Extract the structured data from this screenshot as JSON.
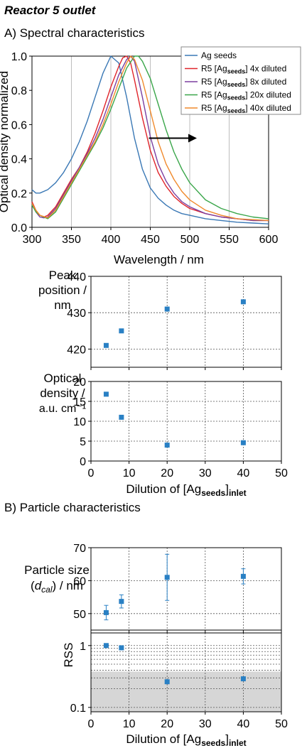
{
  "figure": {
    "title": "Reactor 5 outlet",
    "section_a": "A) Spectral characteristics",
    "section_b": "B) Particle characteristics"
  },
  "chart_data": [
    {
      "id": "spectra",
      "type": "line",
      "xlabel": "Wavelength / nm",
      "ylabel": "Optical density normalized",
      "xlim": [
        300,
        600
      ],
      "ylim": [
        0,
        1.0
      ],
      "xticks": [
        300,
        350,
        400,
        450,
        500,
        550,
        600
      ],
      "yticks": [
        0.0,
        0.2,
        0.4,
        0.6,
        0.8,
        1.0
      ],
      "xtick_labels": [
        "300",
        "350",
        "400",
        "450",
        "500",
        "550",
        "600"
      ],
      "ytick_labels": [
        "0.0",
        "0.2",
        "0.4",
        "0.6",
        "0.8",
        "1.0"
      ],
      "grid": "vertical",
      "legend_position": "top-right",
      "annotation": "arrow pointing right, from 450 nm to 500 nm at 0.50",
      "series": [
        {
          "name": "Ag seeds",
          "name_main": "Ag seeds",
          "name_sub": "",
          "name_suffix": "",
          "color": "#3a78b5",
          "x": [
            300,
            305,
            310,
            320,
            330,
            340,
            350,
            360,
            370,
            380,
            390,
            400,
            410,
            420,
            430,
            440,
            450,
            460,
            470,
            480,
            490,
            500,
            520,
            540,
            560,
            580,
            600
          ],
          "y": [
            0.22,
            0.2,
            0.2,
            0.22,
            0.26,
            0.32,
            0.4,
            0.5,
            0.62,
            0.76,
            0.9,
            1.0,
            0.96,
            0.76,
            0.52,
            0.34,
            0.23,
            0.17,
            0.13,
            0.1,
            0.08,
            0.07,
            0.05,
            0.04,
            0.03,
            0.025,
            0.02
          ]
        },
        {
          "name": "R5 [Agseeds] 4x diluted",
          "name_main": "R5 [Ag",
          "name_sub": "seeds",
          "name_suffix": "] 4x diluted",
          "color": "#e0252b",
          "x": [
            300,
            305,
            310,
            315,
            320,
            330,
            340,
            350,
            360,
            370,
            380,
            390,
            400,
            410,
            415,
            420,
            425,
            430,
            440,
            450,
            460,
            470,
            480,
            490,
            500,
            520,
            540,
            560,
            580,
            600
          ],
          "y": [
            0.15,
            0.1,
            0.07,
            0.06,
            0.07,
            0.12,
            0.2,
            0.28,
            0.35,
            0.44,
            0.55,
            0.68,
            0.82,
            0.94,
            0.99,
            1.0,
            0.96,
            0.86,
            0.64,
            0.45,
            0.32,
            0.24,
            0.18,
            0.14,
            0.11,
            0.08,
            0.06,
            0.05,
            0.04,
            0.04
          ]
        },
        {
          "name": "R5 [Agseeds] 8x diluted",
          "name_main": "R5 [Ag",
          "name_sub": "seeds",
          "name_suffix": "] 8x diluted",
          "color": "#7b3fa0",
          "x": [
            300,
            305,
            310,
            315,
            320,
            330,
            340,
            350,
            360,
            370,
            380,
            390,
            400,
            410,
            420,
            425,
            430,
            440,
            450,
            460,
            470,
            480,
            490,
            500,
            520,
            540,
            560,
            580,
            600
          ],
          "y": [
            0.14,
            0.09,
            0.06,
            0.055,
            0.06,
            0.11,
            0.19,
            0.27,
            0.35,
            0.43,
            0.52,
            0.63,
            0.76,
            0.89,
            0.98,
            1.0,
            0.97,
            0.76,
            0.53,
            0.37,
            0.27,
            0.2,
            0.15,
            0.12,
            0.08,
            0.06,
            0.05,
            0.04,
            0.04
          ]
        },
        {
          "name": "R5 [Agseeds] 20x diluted",
          "name_main": "R5 [Ag",
          "name_sub": "seeds",
          "name_suffix": "] 20x diluted",
          "color": "#3aa64a",
          "x": [
            300,
            305,
            310,
            320,
            330,
            340,
            350,
            360,
            370,
            380,
            390,
            400,
            410,
            420,
            430,
            435,
            440,
            450,
            460,
            470,
            480,
            490,
            500,
            520,
            540,
            560,
            580,
            600
          ],
          "y": [
            0.13,
            0.09,
            0.07,
            0.05,
            0.09,
            0.17,
            0.25,
            0.33,
            0.41,
            0.49,
            0.58,
            0.69,
            0.81,
            0.93,
            1.0,
            1.0,
            0.97,
            0.87,
            0.72,
            0.57,
            0.44,
            0.34,
            0.26,
            0.16,
            0.11,
            0.08,
            0.06,
            0.05
          ]
        },
        {
          "name": "R5 [Agseeds] 40x diluted",
          "name_main": "R5 [Ag",
          "name_sub": "seeds",
          "name_suffix": "] 40x diluted",
          "color": "#f08a2c",
          "x": [
            300,
            305,
            310,
            320,
            330,
            340,
            350,
            360,
            370,
            380,
            390,
            400,
            410,
            420,
            425,
            430,
            440,
            450,
            460,
            470,
            480,
            490,
            500,
            520,
            540,
            560,
            580,
            600
          ],
          "y": [
            0.14,
            0.1,
            0.07,
            0.055,
            0.1,
            0.18,
            0.26,
            0.34,
            0.42,
            0.5,
            0.6,
            0.72,
            0.85,
            0.96,
            1.0,
            0.98,
            0.86,
            0.68,
            0.5,
            0.37,
            0.28,
            0.21,
            0.16,
            0.1,
            0.07,
            0.05,
            0.045,
            0.04
          ]
        }
      ]
    },
    {
      "id": "peak-position",
      "type": "scatter",
      "ylabel": [
        "Peak",
        "position /",
        "nm"
      ],
      "xlim": [
        0,
        50
      ],
      "ylim": [
        415,
        440
      ],
      "yticks": [
        420,
        430,
        440
      ],
      "ytick_labels": [
        "420",
        "430",
        "440"
      ],
      "grid": "both",
      "x": [
        4,
        8,
        20,
        40
      ],
      "y": [
        421,
        425,
        431,
        433
      ],
      "color": "#2980c4"
    },
    {
      "id": "optical-density",
      "type": "scatter",
      "ylabel": [
        "Optical",
        "density /",
        "a.u. cm⁻¹"
      ],
      "xlabel": "Dilution of [Agseeds]inlet",
      "xlabel_main": "Dilution of [Ag",
      "xlabel_sub1": "seeds",
      "xlabel_mid": "]",
      "xlabel_sub2": "inlet",
      "xlim": [
        0,
        50
      ],
      "ylim": [
        0,
        20
      ],
      "xticks": [
        0,
        10,
        20,
        30,
        40,
        50
      ],
      "xtick_labels": [
        "0",
        "10",
        "20",
        "30",
        "40",
        "50"
      ],
      "yticks": [
        0,
        5,
        10,
        15,
        20
      ],
      "ytick_labels": [
        "0",
        "5",
        "10",
        "15",
        "20"
      ],
      "grid": "both",
      "x": [
        4,
        8,
        20,
        40
      ],
      "y": [
        16.8,
        11.0,
        4.0,
        4.6
      ],
      "color": "#2980c4"
    },
    {
      "id": "particle-size",
      "type": "scatter",
      "ylabel": [
        "Particle size",
        "(d_cal) / nm"
      ],
      "xlim": [
        0,
        50
      ],
      "ylim": [
        45,
        70
      ],
      "yticks": [
        50,
        60,
        70
      ],
      "ytick_labels": [
        "50",
        "60",
        "70"
      ],
      "grid": "both",
      "x": [
        4,
        8,
        20,
        40
      ],
      "y": [
        50.3,
        53.7,
        61.0,
        61.3
      ],
      "yerr": [
        2.2,
        2.0,
        7.0,
        2.3
      ],
      "color": "#2980c4"
    },
    {
      "id": "rss",
      "type": "scatter",
      "ylabel": "RSS",
      "xlabel": "Dilution of [Agseeds]inlet",
      "xlabel_main": "Dilution of [Ag",
      "xlabel_sub1": "seeds",
      "xlabel_mid": "]",
      "xlabel_sub2": "inlet",
      "yscale": "log",
      "xlim": [
        0,
        50
      ],
      "ylim": [
        0.085,
        1.6
      ],
      "xticks": [
        0,
        10,
        20,
        30,
        40,
        50
      ],
      "xtick_labels": [
        "0",
        "10",
        "20",
        "30",
        "40",
        "50"
      ],
      "yticks": [
        0.1,
        1
      ],
      "ytick_labels": [
        "0.1",
        "1"
      ],
      "grid": "both",
      "shaded_band": [
        0.085,
        0.38
      ],
      "shade_color": "#d6d6d6",
      "x": [
        4,
        8,
        20,
        40
      ],
      "y": [
        1.0,
        0.92,
        0.26,
        0.29
      ],
      "color": "#2980c4"
    }
  ]
}
